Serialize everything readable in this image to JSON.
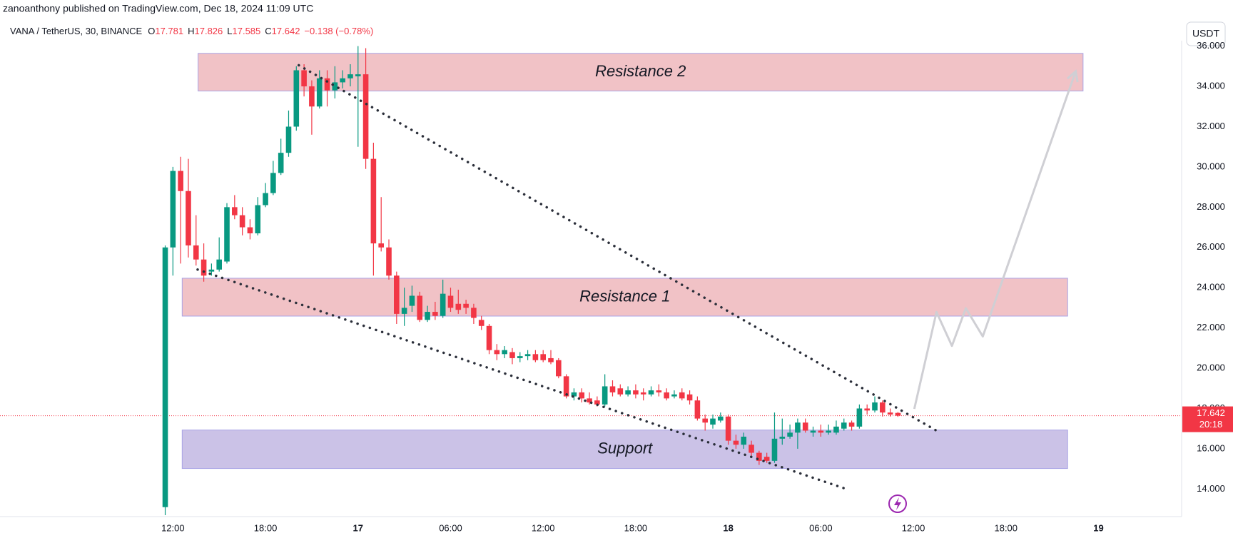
{
  "chart_data": {
    "type": "candlestick",
    "attribution": "zanoanthony published on TradingView.com, Dec 18, 2024 11:09 UTC",
    "symbol": "VANA / TetherUS, 30, BINANCE",
    "legend": [
      {
        "key": "O",
        "value": "17.781"
      },
      {
        "key": "H",
        "value": "17.826"
      },
      {
        "key": "L",
        "value": "17.585"
      },
      {
        "key": "C",
        "value": "17.642"
      }
    ],
    "change": "−0.138 (−0.78%)",
    "currency_button": "USDT",
    "last_price_label": "17.642",
    "countdown": "20:18",
    "up_color": "#089981",
    "down_color": "#f23645",
    "xlim": [
      0.79,
      77.39
    ],
    "ylim": [
      12.63,
      36.27
    ],
    "xticks": [
      {
        "value": 12,
        "label": "12:00"
      },
      {
        "value": 18,
        "label": "18:00"
      },
      {
        "value": 24,
        "label": "17"
      },
      {
        "value": 30,
        "label": "06:00"
      },
      {
        "value": 36,
        "label": "12:00"
      },
      {
        "value": 42,
        "label": "18:00"
      },
      {
        "value": 48,
        "label": "18"
      },
      {
        "value": 54,
        "label": "06:00"
      },
      {
        "value": 60,
        "label": "12:00"
      },
      {
        "value": 66,
        "label": "18:00"
      },
      {
        "value": 72,
        "label": "19"
      }
    ],
    "yticks": [
      {
        "value": 14,
        "label": "14.000"
      },
      {
        "value": 16,
        "label": "16.000"
      },
      {
        "value": 18,
        "label": "18.000"
      },
      {
        "value": 20,
        "label": "20.000"
      },
      {
        "value": 22,
        "label": "22.000"
      },
      {
        "value": 24,
        "label": "24.000"
      },
      {
        "value": 26,
        "label": "26.000"
      },
      {
        "value": 28,
        "label": "28.000"
      },
      {
        "value": 30,
        "label": "30.000"
      },
      {
        "value": 32,
        "label": "32.000"
      },
      {
        "value": 34,
        "label": "34.000"
      },
      {
        "value": 36,
        "label": "36.000"
      }
    ],
    "x": [
      11.5,
      12,
      12.5,
      13,
      13.5,
      14,
      14.5,
      15,
      15.5,
      16,
      16.5,
      17,
      17.5,
      18,
      18.5,
      19,
      19.5,
      20,
      20.5,
      21,
      21.5,
      22,
      22.5,
      23,
      23.5,
      24,
      24.5,
      25,
      25.5,
      26,
      26.5,
      27,
      27.5,
      28,
      28.5,
      29,
      29.5,
      30,
      30.5,
      31,
      31.5,
      32,
      32.5,
      33,
      33.5,
      34,
      34.5,
      35,
      35.5,
      36,
      36.5,
      37,
      37.5,
      38,
      38.5,
      39,
      39.5,
      40,
      40.5,
      41,
      41.5,
      42,
      42.5,
      43,
      43.5,
      44,
      44.5,
      45,
      45.5,
      46,
      46.5,
      47,
      47.5,
      48,
      48.5,
      49,
      49.5,
      50,
      50.5,
      51,
      51.5,
      52,
      52.5,
      53,
      53.5,
      54,
      54.5,
      55,
      55.5,
      56,
      56.5,
      57,
      57.5,
      58,
      58.5,
      59
    ],
    "open": [
      13.1,
      26.0,
      29.8,
      28.8,
      26.1,
      25.4,
      24.8,
      24.9,
      25.3,
      28.0,
      27.6,
      27.0,
      26.7,
      28.1,
      28.7,
      29.7,
      30.7,
      32.0,
      34.8,
      34.0,
      33.0,
      34.4,
      33.8,
      34.2,
      34.4,
      34.5,
      34.6,
      30.4,
      26.2,
      26.0,
      24.6,
      22.7,
      23.1,
      23.6,
      22.4,
      22.8,
      22.6,
      23.6,
      23.2,
      23.2,
      23.0,
      22.4,
      22.1,
      20.9,
      20.7,
      20.8,
      20.5,
      20.6,
      20.7,
      20.7,
      20.5,
      20.4,
      19.6,
      18.6,
      18.8,
      18.5,
      18.4,
      18.2,
      19.1,
      19.0,
      18.7,
      18.9,
      18.8,
      18.7,
      18.9,
      18.8,
      18.6,
      18.8,
      18.7,
      18.4,
      17.5,
      17.2,
      17.4,
      17.6,
      16.4,
      16.2,
      16.2,
      15.8,
      15.6,
      15.4,
      16.5,
      16.6,
      16.8,
      17.3,
      16.8,
      16.9,
      16.8,
      16.8,
      17.0,
      17.3,
      17.1,
      18.0,
      17.9,
      18.3,
      17.8,
      17.781
    ],
    "high": [
      26.1,
      30.0,
      30.5,
      30.4,
      27.6,
      26.2,
      25.2,
      26.5,
      28.2,
      28.6,
      28.0,
      27.4,
      28.5,
      29.2,
      30.3,
      31.4,
      32.8,
      35.0,
      35.1,
      34.3,
      34.8,
      34.8,
      35.0,
      34.8,
      35.1,
      36.0,
      35.9,
      31.2,
      28.5,
      26.4,
      24.8,
      24.0,
      24.1,
      23.8,
      23.1,
      23.3,
      24.4,
      24.0,
      23.9,
      23.4,
      23.2,
      22.6,
      22.2,
      21.2,
      21.1,
      21.0,
      20.8,
      20.9,
      20.9,
      20.9,
      20.9,
      20.5,
      19.7,
      19.0,
      19.0,
      18.8,
      18.6,
      19.7,
      19.4,
      19.2,
      19.1,
      19.2,
      19.0,
      19.1,
      19.2,
      19.0,
      18.9,
      19.0,
      18.9,
      18.6,
      17.7,
      17.7,
      17.8,
      17.7,
      16.7,
      16.8,
      16.4,
      15.9,
      15.8,
      17.8,
      17.5,
      17.2,
      17.5,
      17.5,
      17.1,
      17.2,
      17.2,
      17.4,
      17.5,
      17.4,
      18.2,
      18.2,
      18.6,
      18.4,
      18.0,
      17.826
    ],
    "low": [
      12.7,
      24.6,
      25.2,
      25.5,
      25.1,
      24.3,
      24.6,
      24.8,
      25.2,
      27.4,
      26.6,
      26.4,
      26.6,
      28.0,
      28.6,
      29.6,
      30.5,
      31.8,
      33.5,
      31.6,
      32.9,
      33.0,
      33.4,
      33.9,
      34.0,
      31.0,
      29.9,
      24.6,
      25.8,
      24.4,
      22.2,
      22.1,
      22.8,
      22.3,
      22.3,
      22.4,
      22.5,
      22.8,
      22.7,
      22.7,
      22.2,
      21.9,
      20.7,
      20.4,
      20.5,
      20.2,
      20.3,
      20.4,
      20.3,
      20.3,
      20.2,
      19.5,
      18.5,
      18.4,
      18.3,
      18.2,
      18.1,
      18.1,
      18.6,
      18.6,
      18.6,
      18.5,
      18.4,
      18.6,
      18.6,
      18.4,
      18.5,
      18.4,
      18.2,
      17.4,
      16.9,
      17.0,
      17.3,
      16.2,
      16.0,
      16.0,
      15.6,
      15.2,
      15.3,
      15.3,
      16.2,
      16.5,
      16.0,
      16.8,
      16.6,
      16.6,
      16.7,
      16.7,
      16.9,
      16.9,
      17.0,
      17.7,
      17.8,
      17.6,
      17.6,
      17.585
    ],
    "close": [
      26.0,
      29.8,
      28.8,
      26.1,
      25.4,
      24.6,
      24.9,
      25.4,
      28.0,
      27.6,
      27.0,
      26.7,
      28.1,
      28.7,
      29.7,
      30.7,
      32.0,
      34.8,
      34.0,
      33.0,
      34.4,
      33.8,
      34.2,
      34.4,
      34.6,
      34.6,
      30.4,
      26.2,
      26.0,
      24.6,
      22.7,
      23.0,
      23.6,
      22.4,
      22.8,
      22.6,
      23.7,
      23.0,
      22.9,
      23.0,
      22.5,
      22.1,
      20.9,
      20.7,
      20.9,
      20.5,
      20.6,
      20.7,
      20.4,
      20.4,
      20.3,
      19.6,
      18.6,
      18.8,
      18.5,
      18.3,
      18.2,
      19.1,
      18.8,
      18.7,
      18.9,
      18.7,
      18.7,
      18.9,
      18.8,
      18.5,
      18.7,
      18.5,
      18.4,
      17.5,
      17.3,
      17.5,
      17.6,
      16.4,
      16.2,
      16.6,
      15.8,
      15.4,
      15.4,
      16.5,
      16.6,
      16.8,
      17.3,
      16.9,
      16.9,
      16.8,
      16.9,
      17.1,
      17.3,
      17.1,
      18.0,
      17.9,
      18.3,
      17.8,
      17.7,
      17.642
    ],
    "zones": [
      {
        "label": "Resistance 2",
        "x": [
          13.63,
          71.0
        ],
        "y": [
          33.77,
          35.64
        ],
        "color": "#f0bfc3"
      },
      {
        "label": "Resistance 1",
        "x": [
          12.6,
          70.0
        ],
        "y": [
          22.59,
          24.47
        ],
        "color": "#f0bfc3"
      },
      {
        "label": "Support",
        "x": [
          12.6,
          70.0
        ],
        "y": [
          15.02,
          16.93
        ],
        "color": "#c8bfe6"
      }
    ],
    "trendlines": [
      {
        "x": [
          20.16,
          61.5
        ],
        "y": [
          35.05,
          16.9
        ]
      },
      {
        "x": [
          13.6,
          55.5
        ],
        "y": [
          24.9,
          14.04
        ]
      }
    ],
    "projection": {
      "x": [
        60.06,
        61.5,
        62.5,
        63.4,
        64.5,
        70.5
      ],
      "y": [
        17.98,
        22.79,
        21.11,
        22.98,
        21.58,
        34.7
      ]
    }
  }
}
